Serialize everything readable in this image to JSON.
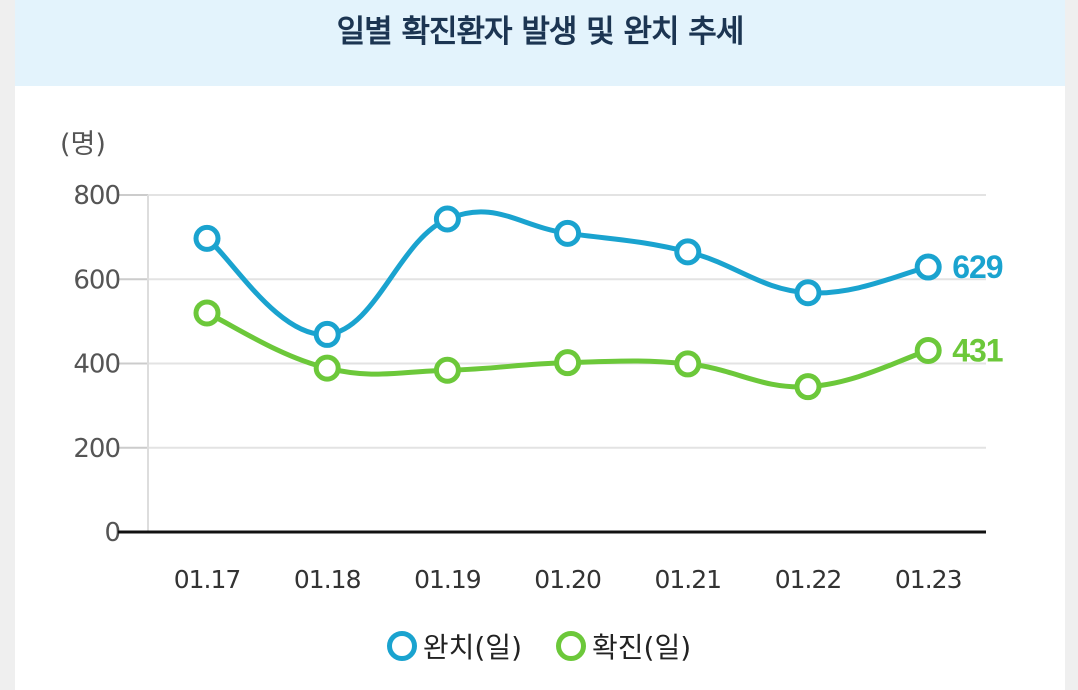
{
  "header": {
    "title": "일별 확진환자 발생 및 완치 추세"
  },
  "chart_data": {
    "type": "line",
    "title": "일별 확진환자 발생 및 완치 추세",
    "ylabel": "(명)",
    "categories": [
      "01.17",
      "01.18",
      "01.19",
      "01.20",
      "01.21",
      "01.22",
      "01.23"
    ],
    "ylim": [
      0,
      800
    ],
    "yticks": [
      0,
      200,
      400,
      600,
      800
    ],
    "grid": true,
    "legend_position": "bottom",
    "series": [
      {
        "name": "완치(일)",
        "color": "#1aa3cf",
        "values": [
          697,
          469,
          743,
          709,
          665,
          568,
          629
        ],
        "end_label": "629"
      },
      {
        "name": "확진(일)",
        "color": "#6cc83a",
        "values": [
          520,
          389,
          384,
          402,
          399,
          345,
          431
        ],
        "end_label": "431"
      }
    ]
  }
}
